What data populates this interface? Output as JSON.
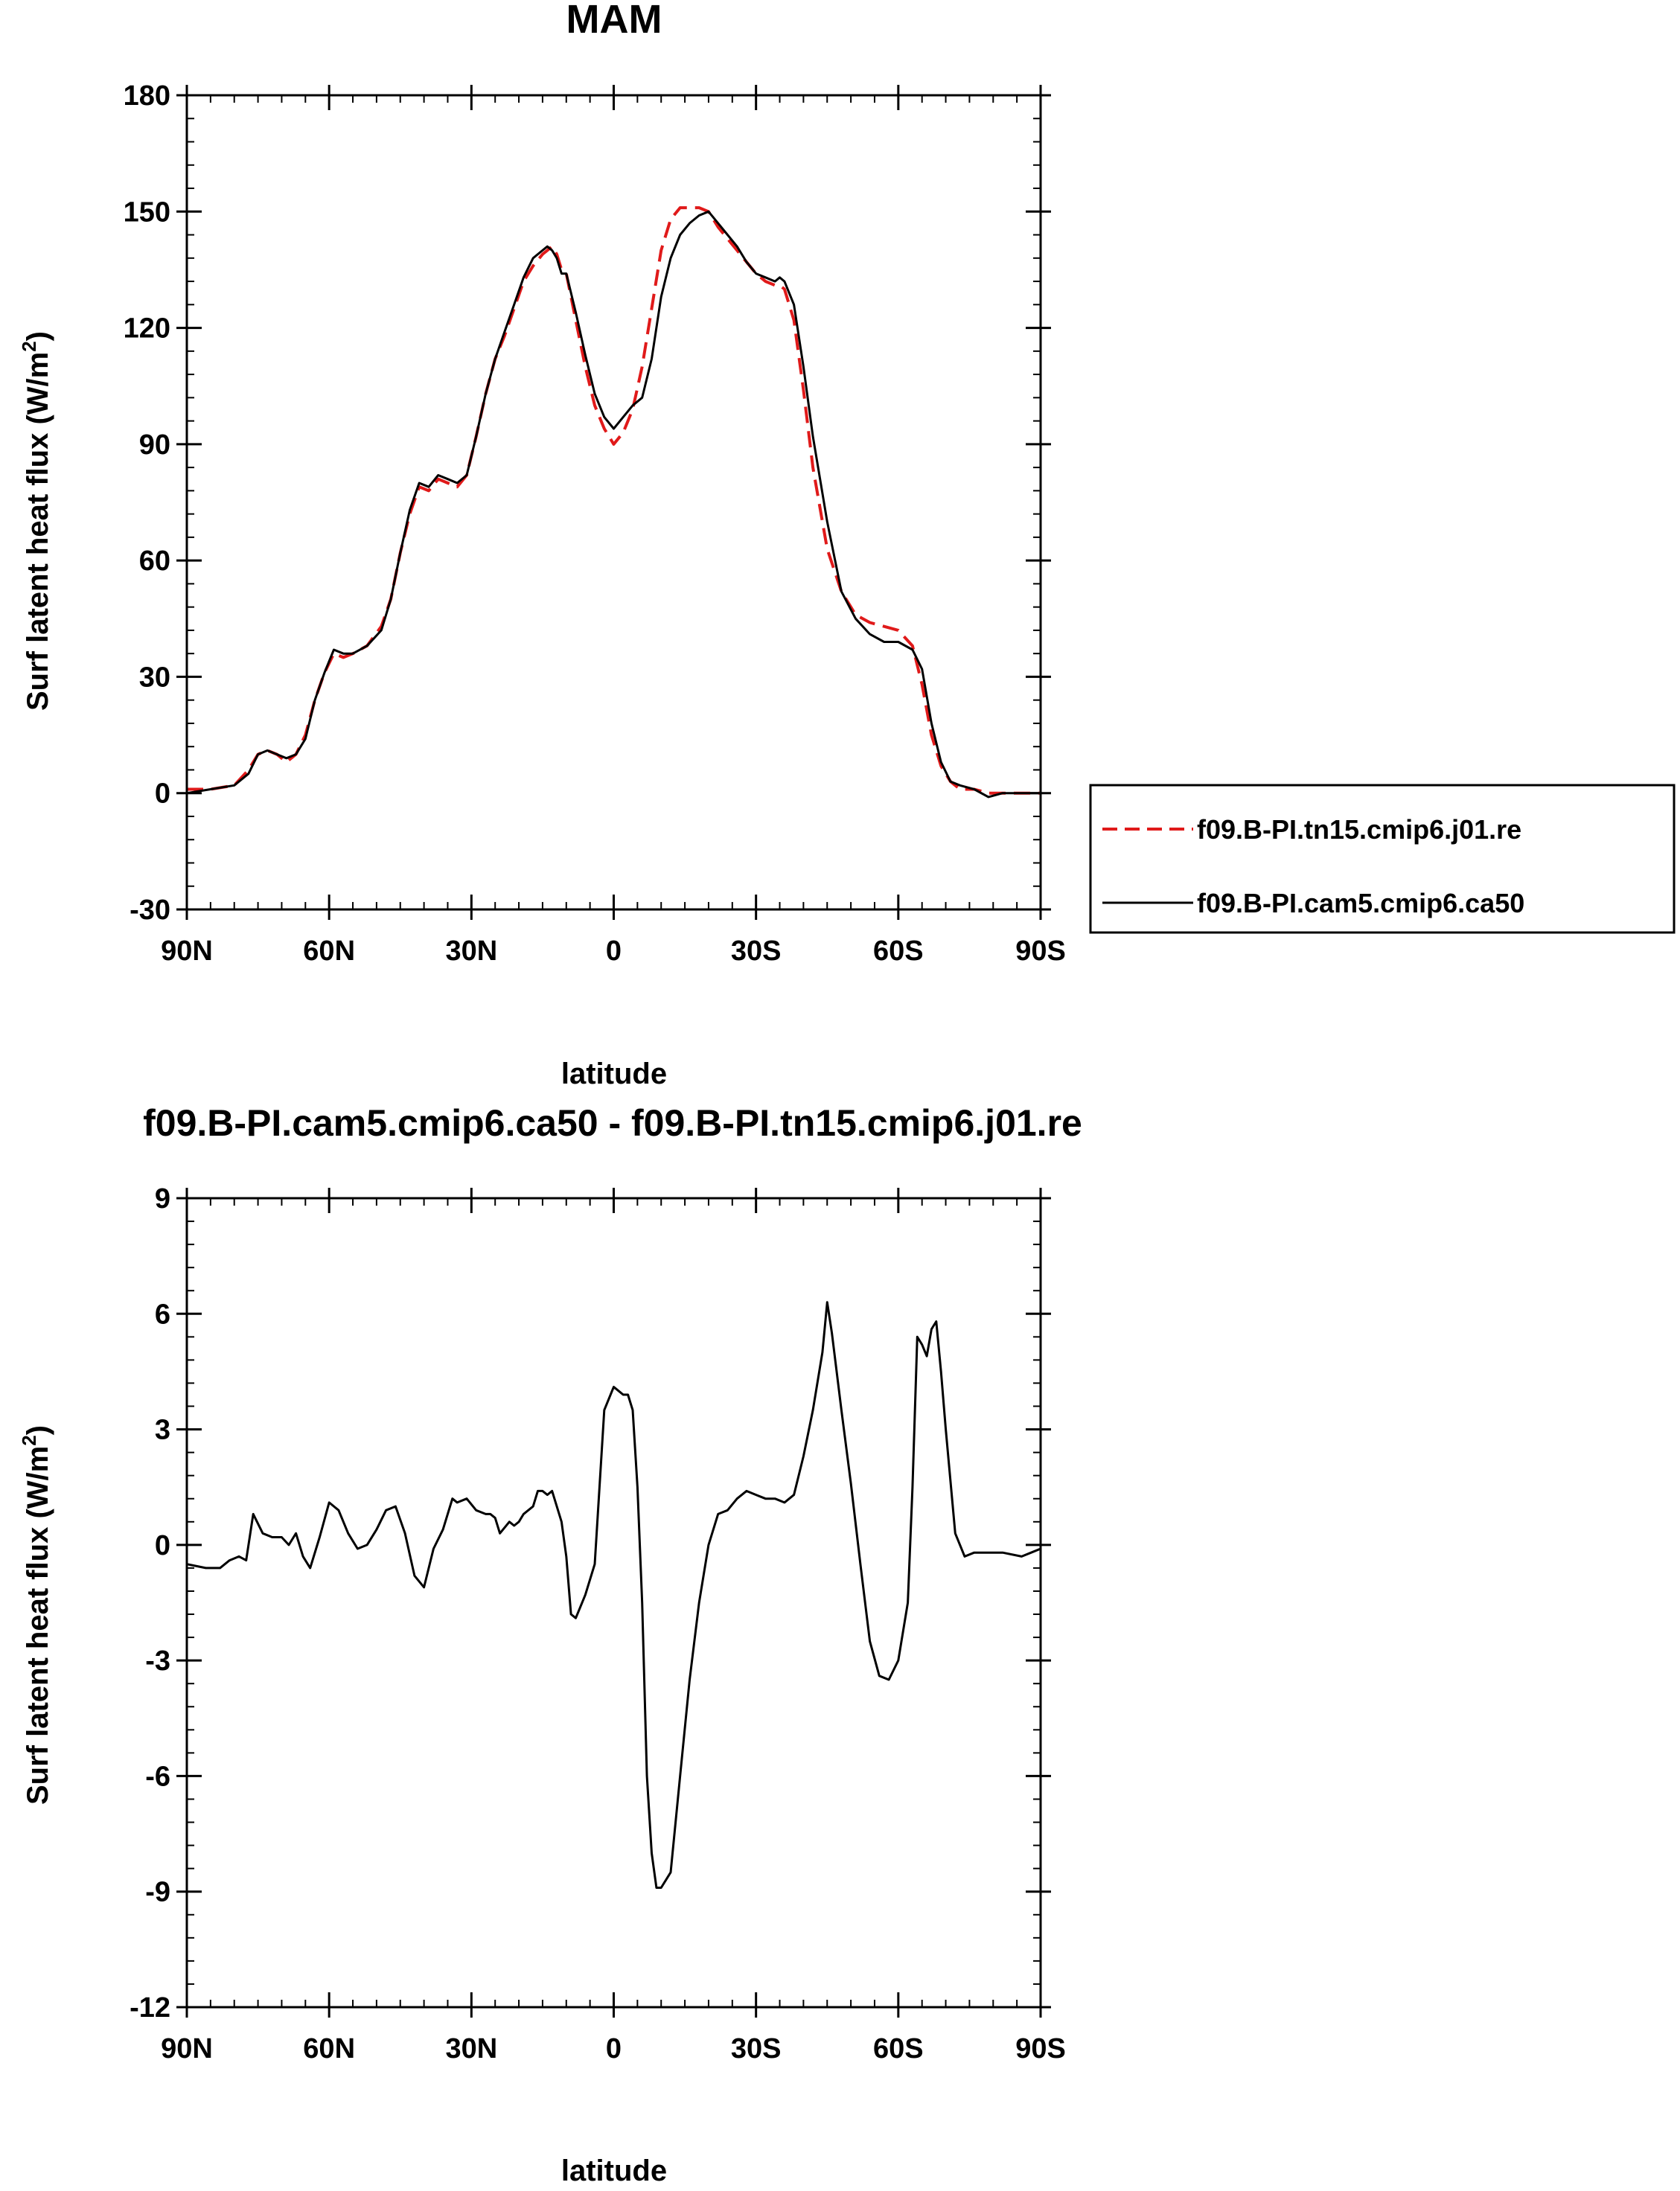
{
  "chart_data": [
    {
      "type": "line",
      "title": "MAM",
      "xlabel": "latitude",
      "ylabel": "Surf latent heat flux (W/m",
      "ylabel_sup": "2",
      "ylabel_close": ")",
      "xlim": [
        -90,
        90
      ],
      "ylim": [
        -30,
        180
      ],
      "xticks": [
        -90,
        -60,
        -30,
        0,
        30,
        60,
        90
      ],
      "xtick_labels": [
        "90N",
        "60N",
        "30N",
        "0",
        "30S",
        "60S",
        "90S"
      ],
      "yticks": [
        -30,
        0,
        30,
        60,
        90,
        120,
        150,
        180
      ],
      "ytick_labels": [
        "-30",
        "0",
        "30",
        "60",
        "90",
        "120",
        "150",
        "180"
      ],
      "legend": [
        {
          "label": "f09.B-PI.tn15.cmip6.j01.re",
          "color": "#e01a1a",
          "dash": "dashed"
        },
        {
          "label": "f09.B-PI.cam5.cmip6.ca50",
          "color": "#000000",
          "dash": "solid"
        }
      ],
      "series": [
        {
          "name": "f09.B-PI.tn15.cmip6.j01.re",
          "color": "#e01a1a",
          "dash": "dashed",
          "x": [
            -90,
            -85,
            -80,
            -77,
            -75,
            -73,
            -71,
            -69,
            -67,
            -65,
            -63,
            -61,
            -59,
            -57,
            -55,
            -52,
            -49,
            -47,
            -45,
            -43,
            -41,
            -39,
            -37,
            -35,
            -33,
            -31,
            -29,
            -27,
            -25,
            -23,
            -21,
            -19,
            -17,
            -15,
            -14,
            -13,
            -12,
            -11,
            -10,
            -8,
            -6,
            -4,
            -2,
            0,
            2,
            4,
            6,
            8,
            10,
            12,
            14,
            16,
            18,
            20,
            22,
            24,
            26,
            28,
            30,
            32,
            34,
            35,
            36,
            38,
            40,
            42,
            45,
            48,
            51,
            54,
            57,
            60,
            63,
            65,
            67,
            69,
            71,
            73,
            76,
            79,
            82,
            86,
            90
          ],
          "y": [
            1,
            1,
            2,
            6,
            10,
            11,
            10,
            8,
            10,
            15,
            24,
            31,
            36,
            35,
            36,
            38,
            43,
            50,
            62,
            72,
            79,
            78,
            81,
            80,
            79,
            82,
            92,
            103,
            112,
            118,
            125,
            132,
            136,
            139,
            140,
            141,
            139,
            135,
            134,
            122,
            110,
            100,
            94,
            90,
            93,
            99,
            110,
            125,
            140,
            148,
            151,
            151,
            151,
            150,
            146,
            143,
            140,
            137,
            134,
            132,
            131,
            131,
            130,
            122,
            104,
            84,
            63,
            52,
            46,
            44,
            43,
            42,
            38,
            28,
            15,
            7,
            3,
            1,
            1,
            0,
            0,
            0,
            0
          ]
        },
        {
          "name": "f09.B-PI.cam5.cmip6.ca50",
          "color": "#000000",
          "dash": "solid",
          "x": [
            -90,
            -85,
            -80,
            -77,
            -75,
            -73,
            -71,
            -69,
            -67,
            -65,
            -63,
            -61,
            -59,
            -57,
            -55,
            -52,
            -49,
            -47,
            -45,
            -43,
            -41,
            -39,
            -37,
            -35,
            -33,
            -31,
            -29,
            -27,
            -25,
            -23,
            -21,
            -19,
            -17,
            -15,
            -14,
            -13,
            -12,
            -11,
            -10,
            -8,
            -6,
            -4,
            -2,
            0,
            2,
            4,
            6,
            8,
            10,
            12,
            14,
            16,
            18,
            20,
            22,
            24,
            26,
            28,
            30,
            32,
            34,
            35,
            36,
            38,
            40,
            42,
            45,
            48,
            51,
            54,
            57,
            60,
            63,
            65,
            67,
            69,
            71,
            73,
            76,
            79,
            82,
            86,
            90
          ],
          "y": [
            0,
            1,
            2,
            5,
            10,
            11,
            10,
            9,
            10,
            14,
            24,
            31,
            37,
            36,
            36,
            38,
            42,
            50,
            62,
            73,
            80,
            79,
            82,
            81,
            80,
            82,
            92,
            103,
            112,
            119,
            126,
            133,
            138,
            140,
            141,
            140,
            138,
            134,
            134,
            124,
            113,
            103,
            97,
            94,
            97,
            100,
            102,
            112,
            128,
            138,
            144,
            147,
            149,
            150,
            147,
            144,
            141,
            137,
            134,
            133,
            132,
            133,
            132,
            126,
            110,
            92,
            70,
            52,
            45,
            41,
            39,
            39,
            37,
            32,
            18,
            8,
            3,
            2,
            1,
            -1,
            0,
            0,
            0
          ]
        }
      ]
    },
    {
      "type": "line",
      "title": "f09.B-PI.cam5.cmip6.ca50 - f09.B-PI.tn15.cmip6.j01.re",
      "xlabel": "latitude",
      "ylabel": "Surf latent heat flux (W/m",
      "ylabel_sup": "2",
      "ylabel_close": ")",
      "xlim": [
        -90,
        90
      ],
      "ylim": [
        -12,
        9
      ],
      "xticks": [
        -90,
        -60,
        -30,
        0,
        30,
        60,
        90
      ],
      "xtick_labels": [
        "90N",
        "60N",
        "30N",
        "0",
        "30S",
        "60S",
        "90S"
      ],
      "yticks": [
        -12,
        -9,
        -6,
        -3,
        0,
        3,
        6,
        9
      ],
      "ytick_labels": [
        "-12",
        "-9",
        "-6",
        "-3",
        "0",
        "3",
        "6",
        "9"
      ],
      "series": [
        {
          "name": "f09.B-PI.cam5.cmip6.ca50 - f09.B-PI.tn15.cmip6.j01.re",
          "color": "#000000",
          "dash": "solid",
          "x": [
            -90,
            -86,
            -83,
            -81,
            -79,
            -77.5,
            -76,
            -74,
            -72,
            -70,
            -68.5,
            -67,
            -65.5,
            -64,
            -62,
            -60,
            -58,
            -56,
            -54,
            -52,
            -50,
            -48,
            -46,
            -44,
            -42,
            -40,
            -38,
            -36,
            -34,
            -33,
            -31,
            -29,
            -27,
            -26,
            -25,
            -24,
            -22,
            -21,
            -20,
            -19,
            -17,
            -16,
            -15,
            -14,
            -13,
            -11,
            -10,
            -9,
            -8,
            -6,
            -4,
            -3,
            -2,
            0,
            1,
            2,
            3,
            4,
            5,
            6,
            7,
            8,
            9,
            10,
            11,
            12,
            14,
            16,
            18,
            20,
            22,
            24,
            26,
            28,
            30,
            32,
            34,
            36,
            38,
            40,
            42,
            44,
            45,
            46,
            48,
            50,
            52,
            54,
            56,
            58,
            60,
            62,
            63,
            64,
            65,
            66,
            67,
            68,
            69,
            70,
            72,
            74,
            76,
            78,
            82,
            86,
            88,
            90
          ],
          "y": [
            -0.5,
            -0.6,
            -0.6,
            -0.4,
            -0.3,
            -0.4,
            0.8,
            0.3,
            0.2,
            0.2,
            0.0,
            0.3,
            -0.3,
            -0.6,
            0.2,
            1.1,
            0.9,
            0.3,
            -0.1,
            0.0,
            0.4,
            0.9,
            1.0,
            0.3,
            -0.8,
            -1.1,
            -0.1,
            0.4,
            1.2,
            1.1,
            1.2,
            0.9,
            0.8,
            0.8,
            0.7,
            0.3,
            0.6,
            0.5,
            0.6,
            0.8,
            1.0,
            1.4,
            1.4,
            1.3,
            1.4,
            0.6,
            -0.3,
            -1.8,
            -1.9,
            -1.3,
            -0.5,
            1.5,
            3.5,
            4.1,
            4.0,
            3.9,
            3.9,
            3.5,
            1.5,
            -1.5,
            -6.0,
            -8.0,
            -8.9,
            -8.9,
            -8.7,
            -8.5,
            -6.0,
            -3.5,
            -1.5,
            0.0,
            0.8,
            0.9,
            1.2,
            1.4,
            1.3,
            1.2,
            1.2,
            1.1,
            1.3,
            2.3,
            3.5,
            5.0,
            6.3,
            5.5,
            3.5,
            1.6,
            -0.5,
            -2.5,
            -3.4,
            -3.5,
            -3.0,
            -1.5,
            1.5,
            5.4,
            5.2,
            4.9,
            5.6,
            5.8,
            4.5,
            3.0,
            0.3,
            -0.3,
            -0.2,
            -0.2,
            -0.2,
            -0.3,
            -0.2,
            -0.1
          ]
        }
      ]
    }
  ]
}
